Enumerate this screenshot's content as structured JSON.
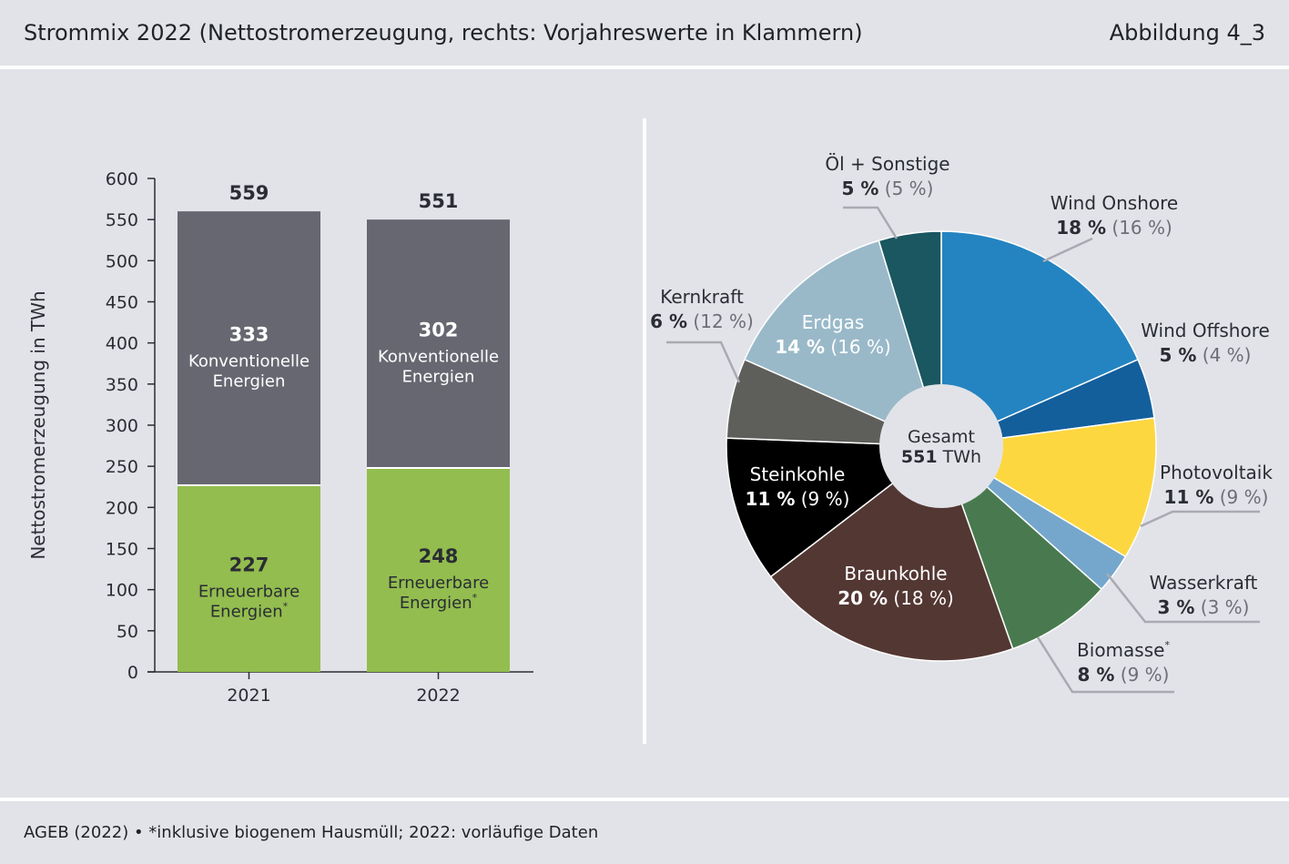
{
  "header": {
    "title": "Strommix 2022 (Nettostromerzeugung, rechts: Vorjahreswerte in Klammern)",
    "figure_number": "Abbildung 4_3"
  },
  "footer": {
    "source": "AGEB (2022) • *inklusive biogenem Hausmüll; 2022: vorläufige Daten"
  },
  "colors": {
    "konventionell": "#676771",
    "erneuerbar": "#93bd4f",
    "wind_onshore": "#2484c1",
    "wind_offshore": "#135f9c",
    "photovoltaik": "#fdd740",
    "wasserkraft": "#75a7cc",
    "biomasse": "#497a4f",
    "braunkohle": "#533733",
    "steinkohle": "#000000",
    "kernkraft": "#5e5f5b",
    "erdgas": "#99b9c9",
    "oel_sonstige": "#1a5760"
  },
  "chart_data": [
    {
      "type": "bar",
      "stacked": true,
      "ylabel": "Nettostromerzeugung in TWh",
      "ylim": [
        0,
        600
      ],
      "yticks": [
        "0",
        "50",
        "100",
        "150",
        "200",
        "250",
        "300",
        "350",
        "400",
        "450",
        "500",
        "550",
        "600"
      ],
      "categories": [
        "2021",
        "2022"
      ],
      "totals": [
        "559",
        "551"
      ],
      "series": [
        {
          "key": "erneuerbar",
          "values": [
            227,
            248
          ],
          "label_line1": "Erneuerbare",
          "label_line2": "Energien",
          "label_mark": "*"
        },
        {
          "key": "konventionell",
          "values": [
            333,
            302
          ],
          "label_line1": "Konventionelle",
          "label_line2": "Energien",
          "label_mark": ""
        }
      ]
    },
    {
      "type": "pie",
      "donut": true,
      "center_label": "Gesamt",
      "center_value": "551",
      "center_unit": "TWh",
      "slices": [
        {
          "key": "wind_onshore",
          "name": "Wind Onshore",
          "mark": "",
          "value": 18.4,
          "pct": "18 %",
          "prev": "(16 %)"
        },
        {
          "key": "wind_offshore",
          "name": "Wind Offshore",
          "mark": "",
          "value": 4.5,
          "pct": "5 %",
          "prev": "(4 %)"
        },
        {
          "key": "photovoltaik",
          "name": "Photovoltaik",
          "mark": "",
          "value": 10.7,
          "pct": "11 %",
          "prev": "(9 %)"
        },
        {
          "key": "wasserkraft",
          "name": "Wasserkraft",
          "mark": "",
          "value": 3.0,
          "pct": "3 %",
          "prev": "(3 %)"
        },
        {
          "key": "biomasse",
          "name": "Biomasse",
          "mark": "*",
          "value": 8.0,
          "pct": "8 %",
          "prev": "(9 %)"
        },
        {
          "key": "braunkohle",
          "name": "Braunkohle",
          "mark": "",
          "value": 20.0,
          "pct": "20 %",
          "prev": "(18 %)"
        },
        {
          "key": "steinkohle",
          "name": "Steinkohle",
          "mark": "",
          "value": 11.0,
          "pct": "11 %",
          "prev": "(9 %)"
        },
        {
          "key": "kernkraft",
          "name": "Kernkraft",
          "mark": "",
          "value": 6.0,
          "pct": "6 %",
          "prev": "(12 %)"
        },
        {
          "key": "erdgas",
          "name": "Erdgas",
          "mark": "",
          "value": 13.7,
          "pct": "14 %",
          "prev": "(16 %)"
        },
        {
          "key": "oel_sonstige",
          "name": "Öl + Sonstige",
          "mark": "",
          "value": 4.7,
          "pct": "5 %",
          "prev": "(5 %)"
        }
      ]
    }
  ]
}
